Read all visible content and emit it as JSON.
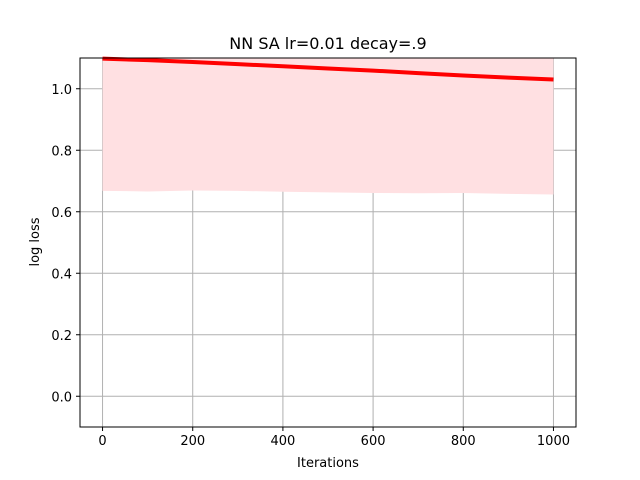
{
  "chart_data": {
    "type": "line",
    "title": "NN SA lr=0.01 decay=.9",
    "xlabel": "Iterations",
    "ylabel": "log loss",
    "xlim": [
      -50,
      1050
    ],
    "ylim": [
      -0.1,
      1.1
    ],
    "xticks": [
      0,
      200,
      400,
      600,
      800,
      1000
    ],
    "xtick_labels": [
      "0",
      "200",
      "400",
      "600",
      "800",
      "1000"
    ],
    "yticks": [
      0.0,
      0.2,
      0.4,
      0.6,
      0.8,
      1.0
    ],
    "ytick_labels": [
      "0.0",
      "0.2",
      "0.4",
      "0.6",
      "0.8",
      "1.0"
    ],
    "grid": true,
    "series": [
      {
        "name": "log loss",
        "color": "#ff0000",
        "x": [
          0,
          100,
          200,
          300,
          400,
          500,
          600,
          700,
          800,
          900,
          1000
        ],
        "values": [
          1.098,
          1.093,
          1.087,
          1.08,
          1.073,
          1.066,
          1.059,
          1.051,
          1.043,
          1.036,
          1.03
        ]
      }
    ],
    "band": {
      "color": "#ffe0e2",
      "x": [
        0,
        100,
        200,
        300,
        400,
        500,
        600,
        700,
        800,
        900,
        1000
      ],
      "lower": [
        0.668,
        0.666,
        0.669,
        0.668,
        0.665,
        0.663,
        0.661,
        0.66,
        0.661,
        0.658,
        0.656
      ],
      "upper": [
        1.1,
        1.1,
        1.1,
        1.1,
        1.1,
        1.1,
        1.1,
        1.1,
        1.1,
        1.1,
        1.1
      ]
    }
  }
}
